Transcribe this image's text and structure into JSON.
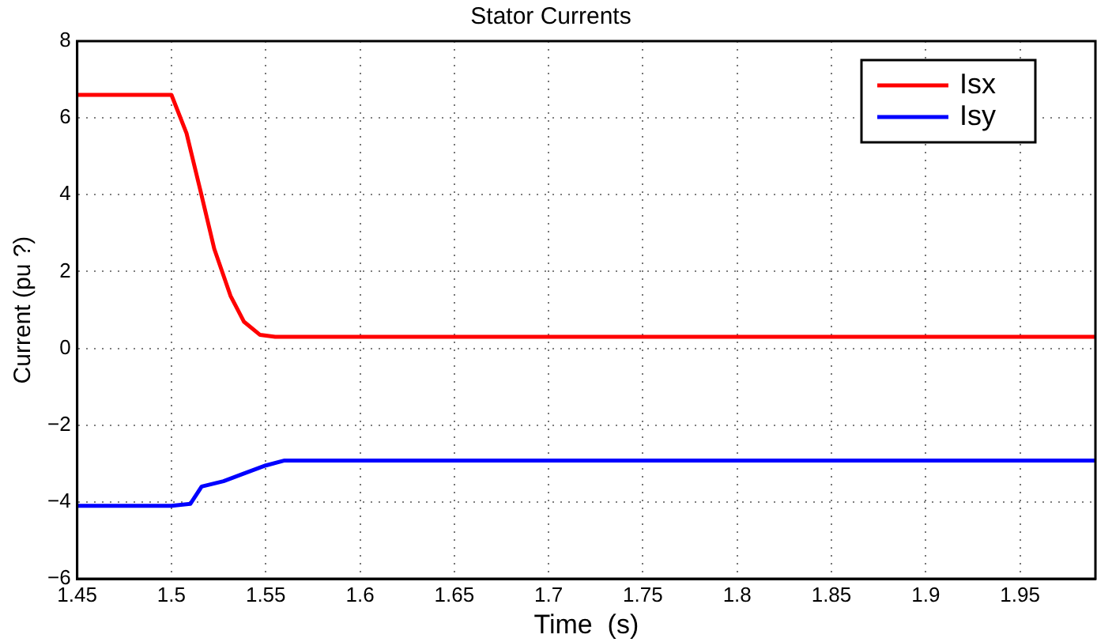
{
  "chart_data": {
    "type": "line",
    "title": "Stator Currents",
    "xlabel": "Time  (s)",
    "ylabel": "Current (pu ?)",
    "xlim": [
      1.45,
      1.99
    ],
    "xticks": [
      1.45,
      1.5,
      1.55,
      1.6,
      1.65,
      1.7,
      1.75,
      1.8,
      1.85,
      1.9,
      1.95
    ],
    "ylim": [
      -6,
      8
    ],
    "yticks": [
      {
        "value": -6,
        "label": "−6"
      },
      {
        "value": -4,
        "label": "−4"
      },
      {
        "value": -2,
        "label": "−2"
      },
      0,
      2,
      4,
      6,
      8
    ],
    "grid": true,
    "legend": "top right",
    "line_style": "solid",
    "marker": "none",
    "series": [
      {
        "name": "Isx",
        "color": "#ff0000",
        "x": [
          1.45,
          1.47,
          1.49,
          1.5,
          1.508,
          1.5155,
          1.5227,
          1.5313,
          1.5385,
          1.547,
          1.555,
          1.6,
          1.7,
          1.8,
          1.9,
          1.99
        ],
        "values": [
          6.6,
          6.6,
          6.6,
          6.6,
          5.6,
          4.08,
          2.59,
          1.37,
          0.69,
          0.35,
          0.3,
          0.3,
          0.3,
          0.3,
          0.3,
          0.3
        ]
      },
      {
        "name": "Isy",
        "color": "#0000ff",
        "x": [
          1.45,
          1.47,
          1.49,
          1.5,
          1.51,
          1.516,
          1.5276,
          1.539,
          1.55,
          1.56,
          1.6,
          1.7,
          1.8,
          1.9,
          1.99
        ],
        "values": [
          -4.1,
          -4.1,
          -4.1,
          -4.1,
          -4.05,
          -3.6,
          -3.46,
          -3.25,
          -3.05,
          -2.92,
          -2.92,
          -2.92,
          -2.92,
          -2.92,
          -2.92
        ]
      }
    ]
  }
}
